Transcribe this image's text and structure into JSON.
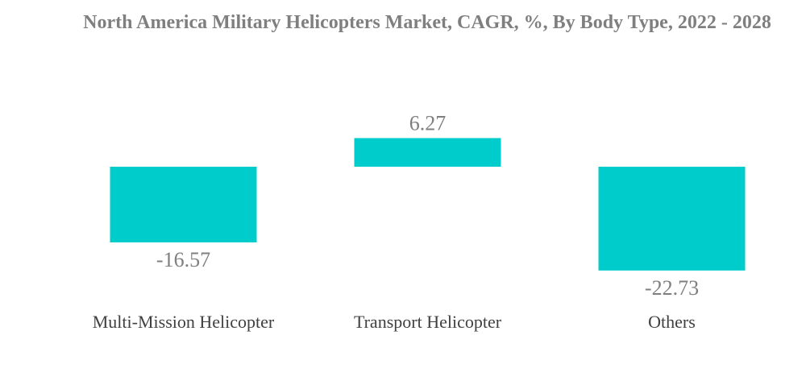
{
  "chart_data": {
    "type": "bar",
    "title": "North America Military Helicopters Market, CAGR, %, By Body Type, 2022 - 2028",
    "categories": [
      "Multi-Mission Helicopter",
      "Transport Helicopter",
      "Others"
    ],
    "values": [
      -16.57,
      6.27,
      -22.73
    ],
    "value_labels": [
      "-16.57",
      "6.27",
      "-22.73"
    ],
    "xlabel": "",
    "ylabel": "",
    "ylim": [
      -22.73,
      6.27
    ],
    "grid": false,
    "legend": "none",
    "bar_color": "#00cccc"
  }
}
